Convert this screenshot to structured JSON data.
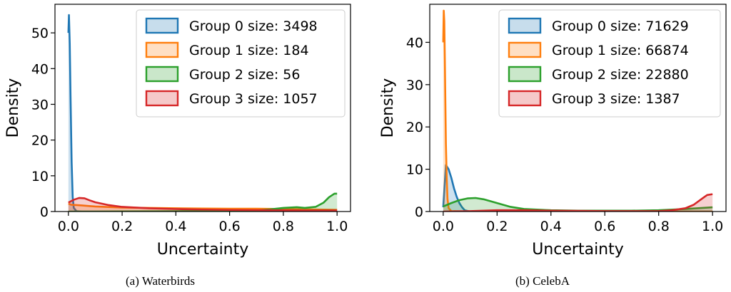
{
  "chart_data": [
    {
      "type": "area",
      "panel_label": "(a)",
      "caption": "Waterbirds",
      "xlabel": "Uncertainty",
      "ylabel": "Density",
      "xlim": [
        -0.05,
        1.05
      ],
      "ylim": [
        0,
        58
      ],
      "xticks": [
        "0.0",
        "0.2",
        "0.4",
        "0.6",
        "0.8",
        "1.0"
      ],
      "yticks": [
        "0",
        "10",
        "20",
        "30",
        "40",
        "50"
      ],
      "xtick_values": [
        0,
        0.2,
        0.4,
        0.6,
        0.8,
        1.0
      ],
      "ytick_values": [
        0,
        10,
        20,
        30,
        40,
        50
      ],
      "legend_position": "top-right",
      "series": [
        {
          "name": "Group 0 size: 3498",
          "color": "#1f77b4",
          "x": [
            0,
            0.002,
            0.005,
            0.008,
            0.012,
            0.016,
            0.02,
            0.03,
            0.05,
            1.0
          ],
          "y": [
            50,
            55,
            47,
            32,
            14,
            4,
            1,
            0.1,
            0,
            0
          ]
        },
        {
          "name": "Group 1 size: 184",
          "color": "#ff7f0e",
          "x": [
            0,
            0.01,
            0.05,
            0.1,
            0.2,
            0.3,
            0.4,
            0.5,
            0.6,
            0.7,
            0.8,
            0.9,
            1.0
          ],
          "y": [
            2.2,
            1.9,
            1.7,
            1.4,
            1.1,
            1.0,
            0.9,
            0.85,
            0.8,
            0.8,
            0.7,
            0.6,
            0.5
          ]
        },
        {
          "name": "Group 2 size: 56",
          "color": "#2ca02c",
          "x": [
            0,
            0.1,
            0.2,
            0.4,
            0.6,
            0.7,
            0.75,
            0.8,
            0.85,
            0.88,
            0.92,
            0.95,
            0.97,
            0.99,
            1.0
          ],
          "y": [
            0,
            0,
            0.05,
            0.1,
            0.2,
            0.3,
            0.6,
            1.0,
            1.2,
            1.0,
            1.3,
            2.5,
            4.0,
            5.0,
            5.0
          ]
        },
        {
          "name": "Group 3 size: 1057",
          "color": "#d62728",
          "x": [
            0,
            0.02,
            0.04,
            0.06,
            0.08,
            0.1,
            0.15,
            0.2,
            0.3,
            0.4,
            0.5,
            0.6,
            0.7,
            0.8,
            0.9,
            1.0
          ],
          "y": [
            2.5,
            3.3,
            3.8,
            3.7,
            3.1,
            2.6,
            1.8,
            1.3,
            0.9,
            0.7,
            0.55,
            0.45,
            0.4,
            0.35,
            0.3,
            0.3
          ]
        }
      ]
    },
    {
      "type": "area",
      "panel_label": "(b)",
      "caption": "CelebA",
      "xlabel": "Uncertainty",
      "ylabel": "Density",
      "xlim": [
        -0.05,
        1.05
      ],
      "ylim": [
        0,
        49
      ],
      "xticks": [
        "0.0",
        "0.2",
        "0.4",
        "0.6",
        "0.8",
        "1.0"
      ],
      "yticks": [
        "0",
        "10",
        "20",
        "30",
        "40"
      ],
      "xtick_values": [
        0,
        0.2,
        0.4,
        0.6,
        0.8,
        1.0
      ],
      "ytick_values": [
        0,
        10,
        20,
        30,
        40
      ],
      "legend_position": "top-right",
      "series": [
        {
          "name": "Group 0 size: 71629",
          "color": "#1f77b4",
          "x": [
            0,
            0.005,
            0.01,
            0.02,
            0.03,
            0.04,
            0.05,
            0.06,
            0.07,
            0.08,
            0.1,
            1.0
          ],
          "y": [
            1,
            6,
            11,
            10,
            8,
            5.5,
            3.5,
            2,
            1,
            0.3,
            0,
            0
          ]
        },
        {
          "name": "Group 1 size: 66874",
          "color": "#ff7f0e",
          "x": [
            0,
            0.002,
            0.004,
            0.006,
            0.008,
            0.01,
            0.013,
            0.016,
            0.02,
            0.03,
            0.1,
            1.0
          ],
          "y": [
            40,
            47.5,
            45,
            36,
            26,
            16,
            8,
            3,
            0.8,
            0.1,
            0,
            0
          ]
        },
        {
          "name": "Group 2 size: 22880",
          "color": "#2ca02c",
          "x": [
            0,
            0.03,
            0.06,
            0.09,
            0.12,
            0.15,
            0.2,
            0.25,
            0.3,
            0.4,
            0.5,
            0.6,
            0.7,
            0.8,
            0.9,
            1.0
          ],
          "y": [
            1.2,
            2.0,
            2.7,
            3.1,
            3.2,
            2.9,
            2.0,
            1.1,
            0.6,
            0.3,
            0.2,
            0.2,
            0.2,
            0.3,
            0.6,
            1.0
          ]
        },
        {
          "name": "Group 3 size: 1387",
          "color": "#d62728",
          "x": [
            0,
            0.1,
            0.2,
            0.3,
            0.4,
            0.5,
            0.6,
            0.7,
            0.8,
            0.85,
            0.9,
            0.93,
            0.96,
            0.98,
            1.0
          ],
          "y": [
            0,
            0.1,
            0.3,
            0.3,
            0.2,
            0.15,
            0.1,
            0.1,
            0.1,
            0.3,
            0.8,
            1.6,
            3.0,
            3.9,
            4.1
          ]
        }
      ]
    }
  ]
}
